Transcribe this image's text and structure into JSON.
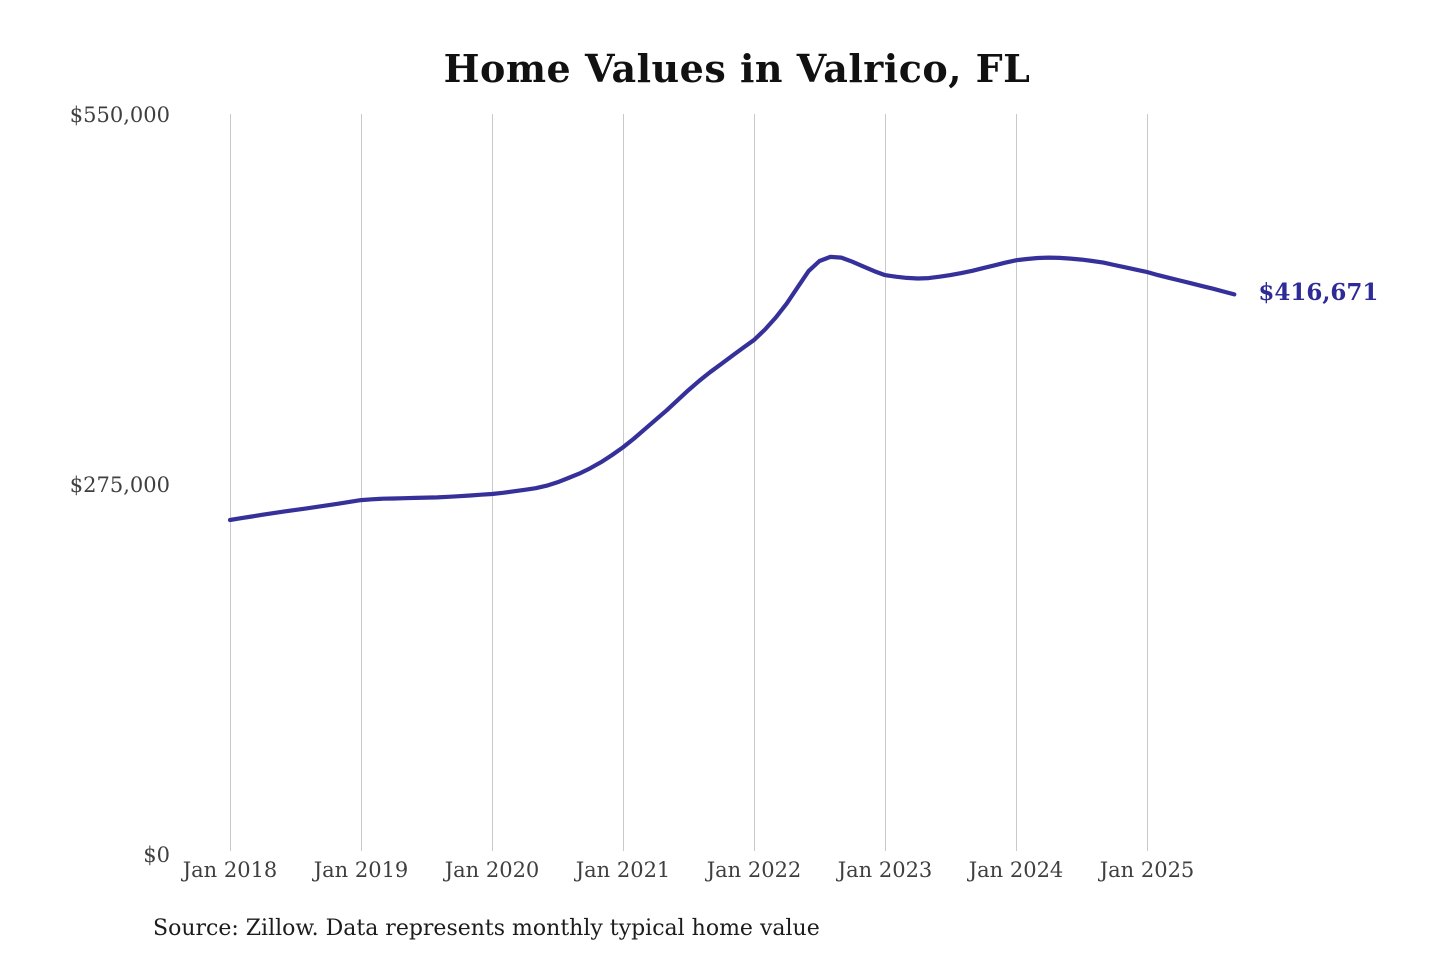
{
  "title": "Home Values in Valrico, FL",
  "source_note": "Source: Zillow. Data represents monthly typical home value",
  "end_label": "$416,671",
  "colors": {
    "line": "#36309a",
    "end_label": "#2e2a96",
    "gridline": "#c9c9c9",
    "axis_text": "#3f3f3f",
    "title_text": "#111111",
    "source_text": "#1c1c1c",
    "background": "#ffffff"
  },
  "chart_data": {
    "type": "line",
    "title": "Home Values in Valrico, FL",
    "series_name": "Monthly typical home value",
    "x_start_month": "Jan 2018",
    "x_end_month": "Sep 2025",
    "x_tick_labels": [
      "Jan 2018",
      "Jan 2019",
      "Jan 2020",
      "Jan 2021",
      "Jan 2022",
      "Jan 2023",
      "Jan 2024",
      "Jan 2025"
    ],
    "y_tick_labels": [
      "$0",
      "$275,000",
      "$550,000"
    ],
    "y_ticks": [
      0,
      275000,
      550000
    ],
    "ylim": [
      0,
      550000
    ],
    "grid": "vertical-only",
    "legend": "none",
    "last_value": 416671,
    "values_monthly": [
      249000,
      250300,
      251600,
      252900,
      254100,
      255400,
      256500,
      257600,
      258800,
      260000,
      261200,
      262500,
      263800,
      264400,
      264800,
      265000,
      265200,
      265400,
      265600,
      265800,
      266200,
      266700,
      267200,
      267800,
      268300,
      269200,
      270300,
      271400,
      272600,
      274500,
      277000,
      280200,
      283500,
      287500,
      292000,
      297300,
      303000,
      309500,
      316500,
      323500,
      330500,
      338000,
      345500,
      352500,
      359000,
      365000,
      371000,
      377000,
      382800,
      390500,
      399500,
      410000,
      422000,
      434000,
      441500,
      444500,
      444000,
      441000,
      437500,
      434000,
      431000,
      429800,
      428900,
      428500,
      428800,
      429800,
      431000,
      432500,
      434200,
      436200,
      438200,
      440200,
      442000,
      443000,
      443700,
      444000,
      443800,
      443300,
      442500,
      441500,
      440300,
      438500,
      436800,
      435000,
      433300,
      431000,
      429000,
      427000,
      425000,
      423000,
      421000,
      418800,
      416671
    ]
  }
}
